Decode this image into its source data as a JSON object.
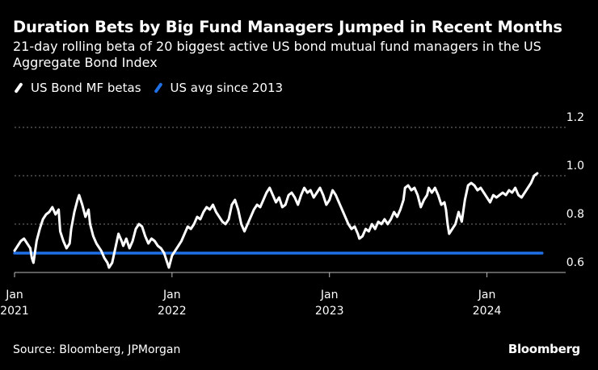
{
  "header": {
    "title": "Duration Bets by Big Fund Managers Jumped in Recent Months",
    "subtitle": "21-day rolling beta of 20 biggest active US bond mutual fund managers in the US Aggregate Bond Index"
  },
  "footer": {
    "source": "Source: Bloomberg, JPMorgan",
    "brand": "Bloomberg"
  },
  "colors": {
    "background": "#000000",
    "mf_betas": "#ffffff",
    "us_avg": "#1f6fe5",
    "grid": "#777777"
  },
  "chart_data": {
    "type": "line",
    "title": "Duration Bets by Big Fund Managers Jumped in Recent Months",
    "xlabel": "",
    "ylabel": "",
    "xlim": [
      2021.0,
      2024.5
    ],
    "ylim": [
      0.6,
      1.2
    ],
    "y_ticks": [
      0.6,
      0.8,
      1.0,
      1.2
    ],
    "x_ticks": [
      {
        "x": 2021.0,
        "label": [
          "Jan",
          "2021"
        ]
      },
      {
        "x": 2022.0,
        "label": [
          "Jan",
          "2022"
        ]
      },
      {
        "x": 2023.0,
        "label": [
          "Jan",
          "2023"
        ]
      },
      {
        "x": 2024.0,
        "label": [
          "Jan",
          "2024"
        ]
      }
    ],
    "grid": "horizontal-dotted",
    "legend_position": "top-left",
    "series": [
      {
        "name": "US Bond MF betas",
        "color": "#ffffff",
        "points": [
          [
            2021.0,
            0.69
          ],
          [
            2021.02,
            0.71
          ],
          [
            2021.04,
            0.73
          ],
          [
            2021.06,
            0.74
          ],
          [
            2021.08,
            0.72
          ],
          [
            2021.1,
            0.7
          ],
          [
            2021.11,
            0.66
          ],
          [
            2021.12,
            0.64
          ],
          [
            2021.14,
            0.73
          ],
          [
            2021.16,
            0.78
          ],
          [
            2021.18,
            0.82
          ],
          [
            2021.2,
            0.84
          ],
          [
            2021.22,
            0.85
          ],
          [
            2021.24,
            0.87
          ],
          [
            2021.26,
            0.84
          ],
          [
            2021.28,
            0.86
          ],
          [
            2021.29,
            0.77
          ],
          [
            2021.31,
            0.73
          ],
          [
            2021.33,
            0.7
          ],
          [
            2021.35,
            0.72
          ],
          [
            2021.36,
            0.78
          ],
          [
            2021.38,
            0.85
          ],
          [
            2021.4,
            0.9
          ],
          [
            2021.41,
            0.92
          ],
          [
            2021.43,
            0.88
          ],
          [
            2021.45,
            0.83
          ],
          [
            2021.47,
            0.86
          ],
          [
            2021.48,
            0.8
          ],
          [
            2021.5,
            0.75
          ],
          [
            2021.52,
            0.72
          ],
          [
            2021.54,
            0.7
          ],
          [
            2021.55,
            0.69
          ],
          [
            2021.57,
            0.66
          ],
          [
            2021.59,
            0.64
          ],
          [
            2021.6,
            0.62
          ],
          [
            2021.62,
            0.64
          ],
          [
            2021.64,
            0.7
          ],
          [
            2021.66,
            0.76
          ],
          [
            2021.68,
            0.73
          ],
          [
            2021.69,
            0.71
          ],
          [
            2021.71,
            0.74
          ],
          [
            2021.73,
            0.7
          ],
          [
            2021.75,
            0.73
          ],
          [
            2021.77,
            0.78
          ],
          [
            2021.79,
            0.8
          ],
          [
            2021.81,
            0.79
          ],
          [
            2021.83,
            0.75
          ],
          [
            2021.85,
            0.72
          ],
          [
            2021.87,
            0.74
          ],
          [
            2021.89,
            0.73
          ],
          [
            2021.91,
            0.71
          ],
          [
            2021.93,
            0.7
          ],
          [
            2021.95,
            0.68
          ],
          [
            2021.97,
            0.64
          ],
          [
            2021.98,
            0.62
          ],
          [
            2022.0,
            0.67
          ],
          [
            2022.02,
            0.69
          ],
          [
            2022.04,
            0.71
          ],
          [
            2022.06,
            0.73
          ],
          [
            2022.08,
            0.76
          ],
          [
            2022.1,
            0.79
          ],
          [
            2022.12,
            0.78
          ],
          [
            2022.14,
            0.8
          ],
          [
            2022.16,
            0.83
          ],
          [
            2022.18,
            0.82
          ],
          [
            2022.2,
            0.85
          ],
          [
            2022.22,
            0.87
          ],
          [
            2022.24,
            0.86
          ],
          [
            2022.26,
            0.88
          ],
          [
            2022.28,
            0.85
          ],
          [
            2022.3,
            0.83
          ],
          [
            2022.32,
            0.81
          ],
          [
            2022.34,
            0.8
          ],
          [
            2022.36,
            0.82
          ],
          [
            2022.38,
            0.88
          ],
          [
            2022.4,
            0.9
          ],
          [
            2022.42,
            0.86
          ],
          [
            2022.44,
            0.8
          ],
          [
            2022.46,
            0.77
          ],
          [
            2022.48,
            0.8
          ],
          [
            2022.5,
            0.83
          ],
          [
            2022.52,
            0.86
          ],
          [
            2022.54,
            0.88
          ],
          [
            2022.56,
            0.87
          ],
          [
            2022.58,
            0.9
          ],
          [
            2022.6,
            0.93
          ],
          [
            2022.62,
            0.95
          ],
          [
            2022.64,
            0.92
          ],
          [
            2022.66,
            0.89
          ],
          [
            2022.68,
            0.91
          ],
          [
            2022.7,
            0.87
          ],
          [
            2022.72,
            0.88
          ],
          [
            2022.74,
            0.92
          ],
          [
            2022.76,
            0.93
          ],
          [
            2022.78,
            0.91
          ],
          [
            2022.8,
            0.88
          ],
          [
            2022.82,
            0.92
          ],
          [
            2022.84,
            0.95
          ],
          [
            2022.86,
            0.93
          ],
          [
            2022.88,
            0.94
          ],
          [
            2022.9,
            0.91
          ],
          [
            2022.92,
            0.93
          ],
          [
            2022.94,
            0.95
          ],
          [
            2022.96,
            0.92
          ],
          [
            2022.98,
            0.88
          ],
          [
            2023.0,
            0.9
          ],
          [
            2023.02,
            0.94
          ],
          [
            2023.04,
            0.92
          ],
          [
            2023.06,
            0.89
          ],
          [
            2023.08,
            0.86
          ],
          [
            2023.1,
            0.83
          ],
          [
            2023.12,
            0.8
          ],
          [
            2023.14,
            0.78
          ],
          [
            2023.16,
            0.79
          ],
          [
            2023.18,
            0.76
          ],
          [
            2023.19,
            0.74
          ],
          [
            2023.21,
            0.75
          ],
          [
            2023.23,
            0.78
          ],
          [
            2023.25,
            0.77
          ],
          [
            2023.27,
            0.8
          ],
          [
            2023.29,
            0.78
          ],
          [
            2023.31,
            0.81
          ],
          [
            2023.33,
            0.8
          ],
          [
            2023.35,
            0.82
          ],
          [
            2023.37,
            0.8
          ],
          [
            2023.39,
            0.82
          ],
          [
            2023.41,
            0.85
          ],
          [
            2023.43,
            0.83
          ],
          [
            2023.45,
            0.86
          ],
          [
            2023.47,
            0.9
          ],
          [
            2023.48,
            0.95
          ],
          [
            2023.5,
            0.96
          ],
          [
            2023.52,
            0.94
          ],
          [
            2023.54,
            0.95
          ],
          [
            2023.56,
            0.92
          ],
          [
            2023.58,
            0.87
          ],
          [
            2023.6,
            0.9
          ],
          [
            2023.62,
            0.92
          ],
          [
            2023.63,
            0.95
          ],
          [
            2023.65,
            0.93
          ],
          [
            2023.67,
            0.95
          ],
          [
            2023.69,
            0.92
          ],
          [
            2023.71,
            0.88
          ],
          [
            2023.73,
            0.89
          ],
          [
            2023.74,
            0.86
          ],
          [
            2023.75,
            0.8
          ],
          [
            2023.76,
            0.76
          ],
          [
            2023.78,
            0.78
          ],
          [
            2023.8,
            0.8
          ],
          [
            2023.82,
            0.85
          ],
          [
            2023.84,
            0.81
          ],
          [
            2023.86,
            0.9
          ],
          [
            2023.88,
            0.96
          ],
          [
            2023.9,
            0.97
          ],
          [
            2023.92,
            0.96
          ],
          [
            2023.94,
            0.94
          ],
          [
            2023.96,
            0.95
          ],
          [
            2023.98,
            0.93
          ],
          [
            2024.0,
            0.91
          ],
          [
            2024.02,
            0.89
          ],
          [
            2024.04,
            0.92
          ],
          [
            2024.06,
            0.91
          ],
          [
            2024.08,
            0.92
          ],
          [
            2024.1,
            0.93
          ],
          [
            2024.12,
            0.92
          ],
          [
            2024.14,
            0.94
          ],
          [
            2024.16,
            0.93
          ],
          [
            2024.18,
            0.95
          ],
          [
            2024.2,
            0.92
          ],
          [
            2024.22,
            0.91
          ],
          [
            2024.24,
            0.93
          ],
          [
            2024.26,
            0.95
          ],
          [
            2024.28,
            0.97
          ],
          [
            2024.3,
            1.0
          ],
          [
            2024.32,
            1.01
          ]
        ]
      },
      {
        "name": "US avg since 2013",
        "color": "#1f6fe5",
        "points": [
          [
            2021.0,
            0.68
          ],
          [
            2024.35,
            0.68
          ]
        ]
      }
    ]
  }
}
